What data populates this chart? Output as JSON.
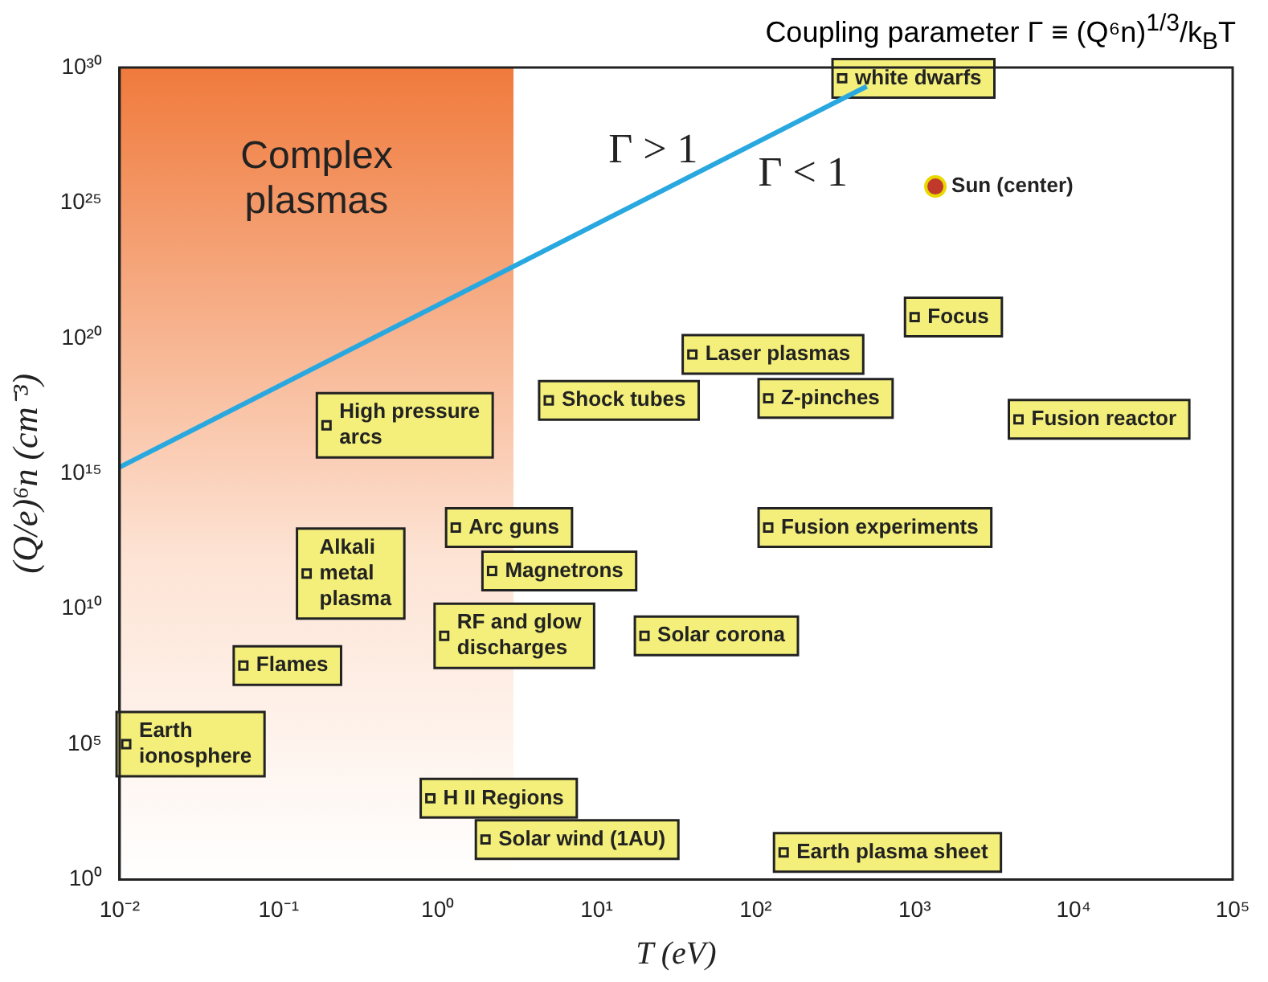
{
  "chart_data": {
    "type": "line",
    "title": "Coupling parameter Γ ≡ (Q⁶n)$^{1/3}$/k$_{B}$T",
    "xlabel": "T (eV)",
    "ylabel": "(Q/e)⁶n (cm⁻³)",
    "log": "xy",
    "xlim": [
      0.01,
      100000
    ],
    "ylim": [
      1,
      1e+30
    ],
    "xticks": [
      {
        "value": 0.01,
        "label": "10⁻²"
      },
      {
        "value": 0.1,
        "label": "10⁻¹"
      },
      {
        "value": 1,
        "label": "10⁰"
      },
      {
        "value": 10,
        "label": "10¹"
      },
      {
        "value": 100,
        "label": "10²"
      },
      {
        "value": 1000,
        "label": "10³"
      },
      {
        "value": 10000,
        "label": "10⁴"
      },
      {
        "value": 100000,
        "label": "10⁵"
      }
    ],
    "yticks": [
      {
        "value": 1,
        "label": "10⁰"
      },
      {
        "value": 100000.0,
        "label": "10⁵"
      },
      {
        "value": 10000000000.0,
        "label": "10¹⁰"
      },
      {
        "value": 1000000000000000.0,
        "label": "10¹⁵"
      },
      {
        "value": 1e+20,
        "label": "10²⁰"
      },
      {
        "value": 1e+25,
        "label": "10²⁵"
      },
      {
        "value": 1e+30,
        "label": "10³⁰"
      }
    ],
    "series": [
      {
        "type": "line",
        "color": "#29a8e0",
        "x": [
          0.01,
          500
        ],
        "values": [
          1700000000000000.0,
          2e+29
        ]
      },
      {
        "type": "scatter",
        "name": "Sun (center)",
        "color": "#c0392b",
        "marker": "circle",
        "x": [
          1350
        ],
        "values": [
          4e+25
        ]
      },
      {
        "type": "scatter",
        "name": "white dwarfs",
        "color": "#f3ef7a",
        "marker": "square",
        "x": [
          350
        ],
        "values": [
          4e+29
        ]
      },
      {
        "type": "scatter",
        "name": "Focus",
        "color": "#f3ef7a",
        "marker": "square",
        "x": [
          1000
        ],
        "values": [
          6e+20
        ]
      },
      {
        "type": "scatter",
        "name": "Laser plasmas",
        "color": "#f3ef7a",
        "marker": "square",
        "x": [
          40
        ],
        "values": [
          2.5e+19
        ]
      },
      {
        "type": "scatter",
        "name": "Z-pinches",
        "color": "#f3ef7a",
        "marker": "square",
        "x": [
          120
        ],
        "values": [
          6e+17
        ]
      },
      {
        "type": "scatter",
        "name": "Fusion reactor",
        "color": "#f3ef7a",
        "marker": "square",
        "x": [
          4500
        ],
        "values": [
          1e+17
        ]
      },
      {
        "type": "scatter",
        "name": "Shock tubes",
        "color": "#f3ef7a",
        "marker": "square",
        "x": [
          5
        ],
        "values": [
          5e+17
        ]
      },
      {
        "type": "scatter",
        "name": "High pressure\narcs",
        "color": "#f3ef7a",
        "marker": "square",
        "x": [
          0.2
        ],
        "values": [
          6e+16
        ]
      },
      {
        "type": "scatter",
        "name": "Fusion experiments",
        "color": "#f3ef7a",
        "marker": "square",
        "x": [
          120
        ],
        "values": [
          10000000000000.0
        ]
      },
      {
        "type": "scatter",
        "name": "Arc guns",
        "color": "#f3ef7a",
        "marker": "square",
        "x": [
          1.3
        ],
        "values": [
          10000000000000.0
        ]
      },
      {
        "type": "scatter",
        "name": "Magnetrons",
        "color": "#f3ef7a",
        "marker": "square",
        "x": [
          2.2
        ],
        "values": [
          250000000000.0
        ]
      },
      {
        "type": "scatter",
        "name": "Alkali\nmetal\nplasma",
        "color": "#f3ef7a",
        "marker": "square",
        "x": [
          0.15
        ],
        "values": [
          200000000000.0
        ]
      },
      {
        "type": "scatter",
        "name": "RF and glow\ndischarges",
        "color": "#f3ef7a",
        "marker": "square",
        "x": [
          1.1
        ],
        "values": [
          1000000000.0
        ]
      },
      {
        "type": "scatter",
        "name": "Solar corona",
        "color": "#f3ef7a",
        "marker": "square",
        "x": [
          20
        ],
        "values": [
          1000000000.0
        ]
      },
      {
        "type": "scatter",
        "name": "Flames",
        "color": "#f3ef7a",
        "marker": "square",
        "x": [
          0.06
        ],
        "values": [
          80000000.0
        ]
      },
      {
        "type": "scatter",
        "name": "Earth\nionosphere",
        "color": "#f3ef7a",
        "marker": "square",
        "x": [
          0.011
        ],
        "values": [
          100000.0
        ]
      },
      {
        "type": "scatter",
        "name": "H II Regions",
        "color": "#f3ef7a",
        "marker": "square",
        "x": [
          0.9
        ],
        "values": [
          1000
        ]
      },
      {
        "type": "scatter",
        "name": "Solar wind (1AU)",
        "color": "#f3ef7a",
        "marker": "square",
        "x": [
          2
        ],
        "values": [
          30
        ]
      },
      {
        "type": "scatter",
        "name": "Earth plasma sheet",
        "color": "#f3ef7a",
        "marker": "square",
        "x": [
          150
        ],
        "values": [
          10
        ]
      }
    ],
    "bands": [
      {
        "axis": "x",
        "from": 0.01,
        "to": 3,
        "label": "Complex\nplasmas",
        "color": "#f07a3c"
      }
    ],
    "annotations": [
      {
        "text": "Γ > 1",
        "x": 30,
        "y": 3e+25
      },
      {
        "text": "Γ < 1",
        "x": 150,
        "y": 3e+27
      }
    ],
    "grid": false,
    "legend": false
  }
}
